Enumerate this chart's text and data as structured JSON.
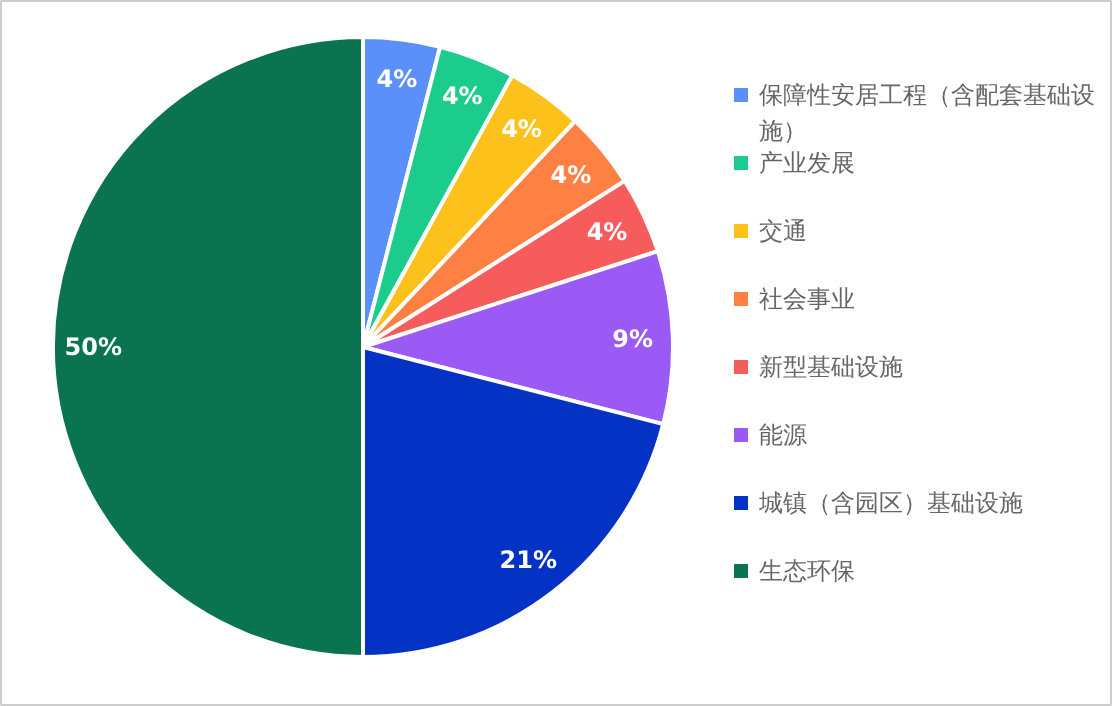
{
  "chart_data": {
    "type": "pie",
    "categories": [
      "保障性安居工程（含配套基础设施）",
      "产业发展",
      "交通",
      "社会事业",
      "新型基础设施",
      "能源",
      "城镇（含园区）基础设施",
      "生态环保"
    ],
    "values": [
      4,
      4,
      4,
      4,
      4,
      9,
      21,
      50
    ],
    "value_labels": [
      "4%",
      "4%",
      "4%",
      "4%",
      "4%",
      "9%",
      "21%",
      "50%"
    ],
    "colors": [
      "#5b8ff9",
      "#1bcc8c",
      "#fcc21b",
      "#ff8043",
      "#f75c5c",
      "#9b59f6",
      "#0432c4",
      "#0a7450"
    ],
    "legend": "right"
  }
}
